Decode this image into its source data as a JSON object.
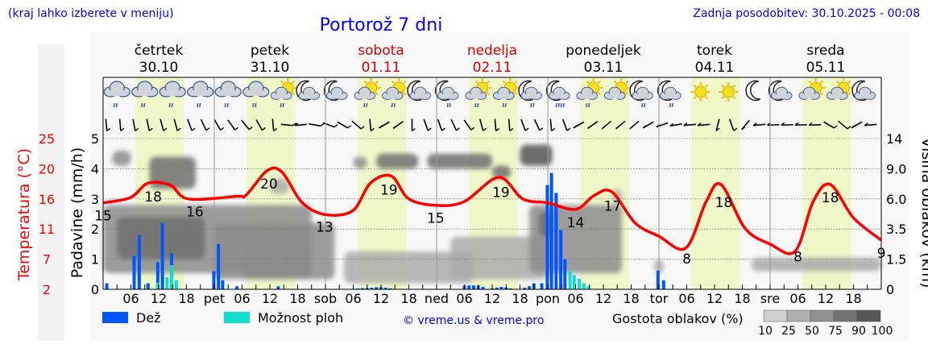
{
  "header": {
    "location_hint": "(kraj lahko izberete v meniju)",
    "title": "Portorož 7 dni",
    "updated": "Zadnja posodobitev: 30.10.2025 - 00:08"
  },
  "days": [
    {
      "name": "četrtek",
      "date": "30.10",
      "weekend": false
    },
    {
      "name": "petek",
      "date": "31.10",
      "weekend": false
    },
    {
      "name": "sobota",
      "date": "01.11",
      "weekend": true
    },
    {
      "name": "nedelja",
      "date": "02.11",
      "weekend": true
    },
    {
      "name": "ponedeljek",
      "date": "03.11",
      "weekend": false
    },
    {
      "name": "torek",
      "date": "04.11",
      "weekend": false
    },
    {
      "name": "sreda",
      "date": "05.11",
      "weekend": false
    }
  ],
  "colors": {
    "rain": "#0055ff",
    "showers": "#11ddcc",
    "temp": "#ff0000",
    "daylight": "#f0f7c8",
    "title": "#0000ff"
  },
  "legend": {
    "rain": "Dež",
    "showers": "Možnost ploh",
    "credit": "© vreme.us & vreme.pro",
    "cloud_density": "Gostota oblakov (%)",
    "density_ticks": [
      "10",
      "25",
      "50",
      "75",
      "90",
      "100"
    ]
  },
  "chart_data": {
    "type": "line+bar",
    "title": "Portorož 7 dni",
    "x_unit": "hours from 30.10 00:00",
    "xlim": [
      0,
      168
    ],
    "x_ticks": [
      "06",
      "12",
      "18",
      "pet",
      "06",
      "12",
      "18",
      "sob",
      "06",
      "12",
      "18",
      "ned",
      "06",
      "12",
      "18",
      "pon",
      "06",
      "12",
      "18",
      "tor",
      "06",
      "12",
      "18",
      "sre",
      "06",
      "12",
      "18"
    ],
    "y_left_temp": {
      "label": "Temperatura (°C)",
      "ticks": [
        "25",
        "20",
        "16",
        "11",
        "7",
        "2"
      ],
      "range": [
        2,
        25
      ]
    },
    "y_left_precip": {
      "label": "Padavine (mm/h)",
      "ticks": [
        "5",
        "4",
        "3",
        "2",
        "1",
        "0"
      ],
      "range": [
        0,
        5
      ]
    },
    "y_right_cloud": {
      "label": "Višina oblakov (km)",
      "ticks": [
        "14",
        "9.0",
        "6.0",
        "3.5",
        "1.5",
        "0"
      ]
    },
    "daylight_hours": [
      7,
      17.5
    ],
    "temperature": [
      [
        0,
        15.2
      ],
      [
        5.9,
        16
      ],
      [
        9.7,
        18.2
      ],
      [
        14.5,
        17.9
      ],
      [
        18.4,
        15.8
      ],
      [
        28.9,
        16.2
      ],
      [
        30.9,
        16.4
      ],
      [
        35.4,
        20.1
      ],
      [
        38.6,
        19.9
      ],
      [
        43,
        15.2
      ],
      [
        48,
        13.4
      ],
      [
        53.9,
        14
      ],
      [
        57.7,
        18.2
      ],
      [
        62.2,
        19.3
      ],
      [
        66,
        15.8
      ],
      [
        72,
        14.8
      ],
      [
        78,
        15.4
      ],
      [
        85.4,
        19.1
      ],
      [
        90.6,
        15.8
      ],
      [
        96,
        15.2
      ],
      [
        102,
        14.2
      ],
      [
        106,
        16.3
      ],
      [
        109.8,
        16.9
      ],
      [
        114.9,
        12.1
      ],
      [
        120,
        10.1
      ],
      [
        125.8,
        8.3
      ],
      [
        130.2,
        15.4
      ],
      [
        133.4,
        18
      ],
      [
        138.6,
        11.3
      ],
      [
        144,
        8.9
      ],
      [
        149.4,
        7.8
      ],
      [
        153.3,
        15.4
      ],
      [
        157,
        18
      ],
      [
        162,
        12.9
      ],
      [
        168,
        9.5
      ]
    ],
    "temp_labels": [
      {
        "h": 0,
        "text": "15"
      },
      {
        "h": 10.8,
        "text": "18"
      },
      {
        "h": 19.8,
        "text": "16"
      },
      {
        "h": 35.8,
        "text": "20"
      },
      {
        "h": 47.8,
        "text": "13"
      },
      {
        "h": 61.7,
        "text": "19"
      },
      {
        "h": 71.8,
        "text": "15"
      },
      {
        "h": 85.9,
        "text": "19"
      },
      {
        "h": 102,
        "text": "14"
      },
      {
        "h": 110,
        "text": "17"
      },
      {
        "h": 126,
        "text": "8"
      },
      {
        "h": 134,
        "text": "18"
      },
      {
        "h": 150,
        "text": "8"
      },
      {
        "h": 157,
        "text": "18"
      },
      {
        "h": 168,
        "text": "9"
      }
    ],
    "precip": [
      [
        0.8,
        0.2,
        0
      ],
      [
        6.7,
        1.1,
        0
      ],
      [
        7.8,
        1.8,
        0
      ],
      [
        9.7,
        0.2,
        0
      ],
      [
        11.8,
        0.9,
        0.22
      ],
      [
        12.8,
        2.2,
        0
      ],
      [
        13.8,
        0,
        0.4
      ],
      [
        14.8,
        1.2,
        0.8
      ],
      [
        15.8,
        0,
        0.3
      ],
      [
        23.9,
        0.6,
        0
      ],
      [
        24.9,
        1.5,
        0
      ],
      [
        25.8,
        0.3,
        0
      ],
      [
        28.9,
        0.1,
        0
      ],
      [
        37.8,
        0.1,
        0
      ],
      [
        55,
        0.03,
        0
      ],
      [
        56,
        0.04,
        0
      ],
      [
        57,
        0.04,
        0
      ],
      [
        58,
        0.05,
        0
      ],
      [
        59,
        0.07,
        0
      ],
      [
        60,
        0.07,
        0
      ],
      [
        61,
        0.05,
        0
      ],
      [
        62,
        0.03,
        0
      ],
      [
        78,
        0.12,
        0
      ],
      [
        79,
        0.13,
        0
      ],
      [
        80,
        0.13,
        0
      ],
      [
        81,
        0.12,
        0
      ],
      [
        82,
        0.08,
        0
      ],
      [
        84,
        0.03,
        0
      ],
      [
        85,
        0.06,
        0
      ],
      [
        86,
        0.08,
        0
      ],
      [
        87,
        0.06,
        0
      ],
      [
        88,
        0.03,
        0
      ],
      [
        91,
        0.05,
        0
      ],
      [
        92,
        0.1,
        0
      ],
      [
        93,
        0.2,
        0
      ],
      [
        94.7,
        0.2,
        0
      ],
      [
        95.9,
        3.46,
        0
      ],
      [
        96.8,
        3.86,
        0
      ],
      [
        97.8,
        3.2,
        0
      ],
      [
        98.8,
        1.97,
        0
      ],
      [
        99.7,
        1.0,
        0
      ],
      [
        100.8,
        0,
        0.6
      ],
      [
        101.7,
        0,
        0.47
      ],
      [
        102.8,
        0,
        0.35
      ],
      [
        103.8,
        0,
        0.2
      ],
      [
        104.8,
        0,
        0.1
      ],
      [
        119.8,
        0.62,
        0
      ],
      [
        121,
        0.3,
        0
      ]
    ],
    "cloud_cells": [
      [
        0,
        45,
        0.8,
        5.5,
        60
      ],
      [
        3,
        22,
        1.5,
        4.5,
        85
      ],
      [
        2,
        6,
        9.5,
        12,
        70
      ],
      [
        10,
        20,
        7,
        11,
        85
      ],
      [
        24,
        50,
        0.5,
        4,
        60
      ],
      [
        30,
        45,
        0.5,
        2,
        50
      ],
      [
        36,
        40,
        6.5,
        8,
        40
      ],
      [
        52,
        80,
        0.3,
        2,
        45
      ],
      [
        54,
        57,
        9,
        11,
        70
      ],
      [
        59,
        68,
        9,
        11.5,
        85
      ],
      [
        70,
        84,
        9,
        11.5,
        85
      ],
      [
        75,
        96,
        0.5,
        3,
        35
      ],
      [
        84,
        88,
        8,
        9.5,
        75
      ],
      [
        90,
        97,
        9.5,
        13,
        90
      ],
      [
        92,
        112,
        0.8,
        5.5,
        55
      ],
      [
        94,
        97,
        3,
        5,
        85
      ],
      [
        110,
        112,
        5.5,
        7,
        40
      ],
      [
        119,
        121,
        0.8,
        1.5,
        40
      ],
      [
        140,
        168,
        0.9,
        1.6,
        30
      ]
    ],
    "weather_icons": [
      "cloud-rain",
      "cloud-rain",
      "cloud-rain",
      "cloud-rain",
      "cloud-rain",
      "cloud-rain",
      "sun-cloud-rain",
      "moon-cloud",
      "moon-cloud",
      "sun-cloud-rain",
      "sun-cloud-rain",
      "moon-cloud",
      "moon-cloud-rain",
      "sun-cloud-rain",
      "sun-cloud-rain",
      "moon-cloud-rain",
      "moon-cloud-heavy-rain",
      "sun-cloud-rain",
      "sun-cloud",
      "moon-cloud-rain",
      "moon-cloud-rain",
      "sun",
      "sun",
      "moon",
      "moon-cloud",
      "sun-cloud",
      "sun-cloud",
      "moon-cloud"
    ],
    "wind_barb_lean_deg": [
      5,
      5,
      10,
      12,
      15,
      15,
      20,
      25,
      30,
      35,
      40,
      30,
      5,
      85,
      -85,
      80,
      70,
      60,
      50,
      5,
      -60,
      -55,
      0,
      20,
      20,
      25,
      35,
      15,
      5,
      5,
      20,
      25,
      5,
      20,
      -60,
      -55,
      -50,
      -50,
      -50,
      -60,
      -70,
      -80,
      -85,
      -85,
      -15,
      20,
      -40,
      -85,
      -88,
      -88,
      -88,
      -88,
      60,
      50,
      -60,
      -85
    ]
  }
}
